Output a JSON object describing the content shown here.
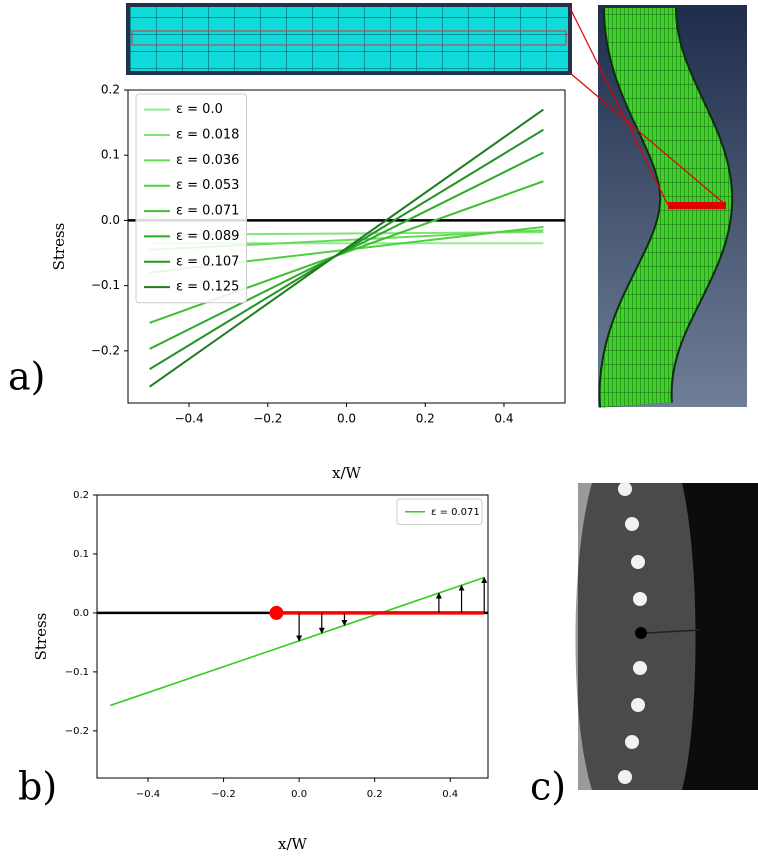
{
  "panel_labels": [
    "a)",
    "b)",
    "c)"
  ],
  "chart_data": [
    {
      "type": "line",
      "xlabel": "x/W",
      "ylabel": "Stress",
      "x": [
        -0.5,
        0.5
      ],
      "series": [
        {
          "name": "ε = 0.0",
          "color": "#90ee90",
          "values": [
            -0.035,
            -0.035
          ]
        },
        {
          "name": "ε = 0.018",
          "color": "#7ee57a",
          "values": [
            -0.022,
            -0.018
          ]
        },
        {
          "name": "ε = 0.036",
          "color": "#66dd55",
          "values": [
            -0.045,
            -0.015
          ]
        },
        {
          "name": "ε = 0.053",
          "color": "#4fd040",
          "values": [
            -0.08,
            -0.01
          ]
        },
        {
          "name": "ε = 0.071",
          "color": "#3cbf30",
          "values": [
            -0.157,
            0.06
          ]
        },
        {
          "name": "ε = 0.089",
          "color": "#2ea82a",
          "values": [
            -0.197,
            0.104
          ]
        },
        {
          "name": "ε = 0.107",
          "color": "#249224",
          "values": [
            -0.228,
            0.139
          ]
        },
        {
          "name": "ε = 0.125",
          "color": "#1e7d1e",
          "values": [
            -0.255,
            0.17
          ]
        }
      ],
      "xlim": [
        -0.555,
        0.555
      ],
      "ylim": [
        -0.28,
        0.2
      ],
      "xticks": [
        {
          "value": -0.4,
          "label": "−0.4"
        },
        {
          "value": -0.2,
          "label": "−0.2"
        },
        {
          "value": 0,
          "label": "0.0"
        },
        {
          "value": 0.2,
          "label": "0.2"
        },
        {
          "value": 0.4,
          "label": "0.4"
        }
      ],
      "yticks": [
        {
          "value": -0.2,
          "label": "−0.2"
        },
        {
          "value": -0.1,
          "label": "−0.1"
        },
        {
          "value": 0,
          "label": "0.0"
        },
        {
          "value": 0.1,
          "label": "0.1"
        },
        {
          "value": 0.2,
          "label": "0.2"
        }
      ],
      "legend": "upper left",
      "zero_line": true
    },
    {
      "type": "line",
      "xlabel": "x/W",
      "ylabel": "Stress",
      "x": [
        -0.5,
        0.49
      ],
      "series": [
        {
          "name": "ε = 0.071",
          "color": "#33cc22",
          "values": [
            -0.157,
            0.06
          ]
        }
      ],
      "xlim": [
        -0.535,
        0.5
      ],
      "ylim": [
        -0.28,
        0.2
      ],
      "xticks": [
        {
          "value": -0.4,
          "label": "−0.4"
        },
        {
          "value": -0.2,
          "label": "−0.2"
        },
        {
          "value": 0,
          "label": "0.0"
        },
        {
          "value": 0.2,
          "label": "0.2"
        },
        {
          "value": 0.4,
          "label": "0.4"
        }
      ],
      "yticks": [
        {
          "value": -0.2,
          "label": "−0.2"
        },
        {
          "value": -0.1,
          "label": "−0.1"
        },
        {
          "value": 0,
          "label": "0.0"
        },
        {
          "value": 0.1,
          "label": "0.1"
        },
        {
          "value": 0.2,
          "label": "0.2"
        }
      ],
      "legend": "upper right",
      "zero_line": true,
      "highlight": {
        "x": [
          -0.06,
          0.49
        ],
        "color": "#ff0000"
      },
      "arrows_x": [
        0,
        0.06,
        0.12,
        0.37,
        0.43,
        0.49
      ]
    }
  ]
}
